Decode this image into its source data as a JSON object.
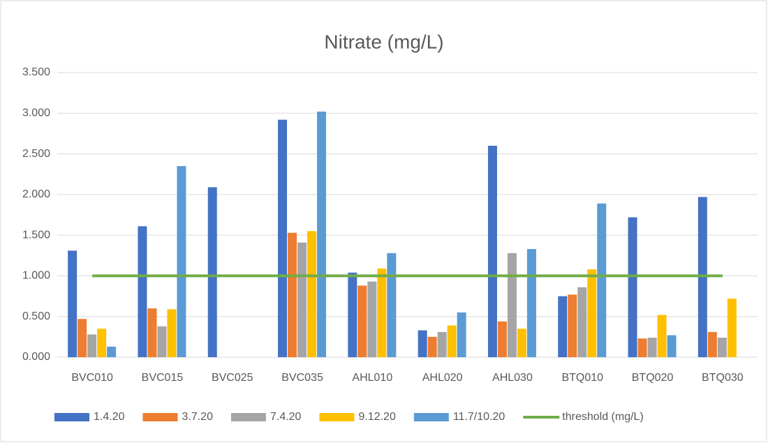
{
  "chart_data": {
    "type": "bar",
    "title": "Nitrate (mg/L)",
    "categories": [
      "BVC010",
      "BVC015",
      "BVC025",
      "BVC035",
      "AHL010",
      "AHL020",
      "AHL030",
      "BTQ010",
      "BTQ020",
      "BTQ030"
    ],
    "series": [
      {
        "name": "1.4.20",
        "color": "#4472c4",
        "values": [
          1.31,
          1.61,
          2.09,
          2.92,
          1.04,
          0.33,
          2.6,
          0.75,
          1.72,
          1.97
        ]
      },
      {
        "name": "3.7.20",
        "color": "#ed7d31",
        "values": [
          0.47,
          0.6,
          null,
          1.53,
          0.88,
          0.25,
          0.44,
          0.77,
          0.23,
          0.31
        ]
      },
      {
        "name": "7.4.20",
        "color": "#a5a5a5",
        "values": [
          0.28,
          0.38,
          null,
          1.41,
          0.93,
          0.31,
          1.28,
          0.86,
          0.24,
          0.24
        ]
      },
      {
        "name": "9.12.20",
        "color": "#ffc000",
        "values": [
          0.35,
          0.59,
          null,
          1.55,
          1.09,
          0.39,
          0.35,
          1.08,
          0.52,
          0.72
        ]
      },
      {
        "name": "11.7/10.20",
        "color": "#5b9bd5",
        "values": [
          0.13,
          2.35,
          null,
          3.02,
          1.28,
          0.55,
          1.33,
          1.89,
          0.27,
          null
        ]
      },
      {
        "name": "threshold (mg/L)",
        "color": "#70ad47",
        "type": "line",
        "values": [
          1,
          1,
          1,
          1,
          1,
          1,
          1,
          1,
          1,
          1
        ]
      }
    ],
    "ylim": [
      0,
      3.5
    ],
    "yticks": [
      {
        "value": 0,
        "label": "0.000"
      },
      {
        "value": 0.5,
        "label": "0.500"
      },
      {
        "value": 1,
        "label": "1.000"
      },
      {
        "value": 1.5,
        "label": "1.500"
      },
      {
        "value": 2,
        "label": "2.000"
      },
      {
        "value": 2.5,
        "label": "2.500"
      },
      {
        "value": 3,
        "label": "3.000"
      },
      {
        "value": 3.5,
        "label": "3.500"
      }
    ],
    "grid": true,
    "legend": "bottom"
  }
}
